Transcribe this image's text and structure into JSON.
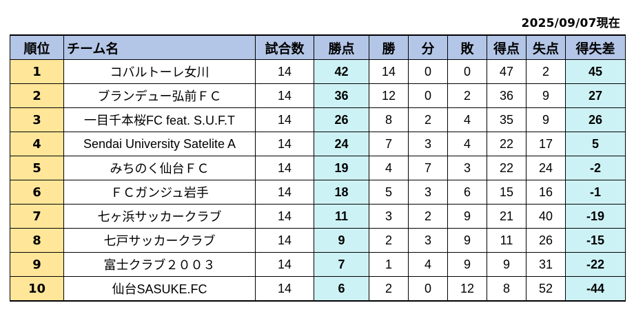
{
  "as_of": "2025/09/07現在",
  "columns": {
    "rank": "順位",
    "team": "チーム名",
    "played": "試合数",
    "points": "勝点",
    "wins": "勝",
    "draws": "分",
    "losses": "敗",
    "goals_for": "得点",
    "goals_against": "失点",
    "goal_diff": "得失差"
  },
  "colors": {
    "header_bg": "#b4c6e7",
    "rank_bg": "#ffe699",
    "highlight_bg": "#ccf2f5"
  },
  "rows": [
    {
      "rank": "1",
      "team": "コバルトーレ女川",
      "played": "14",
      "points": "42",
      "wins": "14",
      "draws": "0",
      "losses": "0",
      "goals_for": "47",
      "goals_against": "2",
      "goal_diff": "45"
    },
    {
      "rank": "2",
      "team": "ブランデュー弘前ＦＣ",
      "played": "14",
      "points": "36",
      "wins": "12",
      "draws": "0",
      "losses": "2",
      "goals_for": "36",
      "goals_against": "9",
      "goal_diff": "27"
    },
    {
      "rank": "3",
      "team": "一目千本桜FC feat. S.U.F.T",
      "played": "14",
      "points": "26",
      "wins": "8",
      "draws": "2",
      "losses": "4",
      "goals_for": "35",
      "goals_against": "9",
      "goal_diff": "26"
    },
    {
      "rank": "4",
      "team": "Sendai University Satelite A",
      "played": "14",
      "points": "24",
      "wins": "7",
      "draws": "3",
      "losses": "4",
      "goals_for": "22",
      "goals_against": "17",
      "goal_diff": "5"
    },
    {
      "rank": "5",
      "team": "みちのく仙台ＦＣ",
      "played": "14",
      "points": "19",
      "wins": "4",
      "draws": "7",
      "losses": "3",
      "goals_for": "22",
      "goals_against": "24",
      "goal_diff": "-2"
    },
    {
      "rank": "6",
      "team": "ＦＣガンジュ岩手",
      "played": "14",
      "points": "18",
      "wins": "5",
      "draws": "3",
      "losses": "6",
      "goals_for": "15",
      "goals_against": "16",
      "goal_diff": "-1"
    },
    {
      "rank": "7",
      "team": "七ヶ浜サッカークラブ",
      "played": "14",
      "points": "11",
      "wins": "3",
      "draws": "2",
      "losses": "9",
      "goals_for": "21",
      "goals_against": "40",
      "goal_diff": "-19"
    },
    {
      "rank": "8",
      "team": "七戸サッカークラブ",
      "played": "14",
      "points": "9",
      "wins": "2",
      "draws": "3",
      "losses": "9",
      "goals_for": "11",
      "goals_against": "26",
      "goal_diff": "-15"
    },
    {
      "rank": "9",
      "team": "富士クラブ２００３",
      "played": "14",
      "points": "7",
      "wins": "1",
      "draws": "4",
      "losses": "9",
      "goals_for": "9",
      "goals_against": "31",
      "goal_diff": "-22"
    },
    {
      "rank": "10",
      "team": "仙台SASUKE.FC",
      "played": "14",
      "points": "6",
      "wins": "2",
      "draws": "0",
      "losses": "12",
      "goals_for": "8",
      "goals_against": "52",
      "goal_diff": "-44"
    }
  ]
}
